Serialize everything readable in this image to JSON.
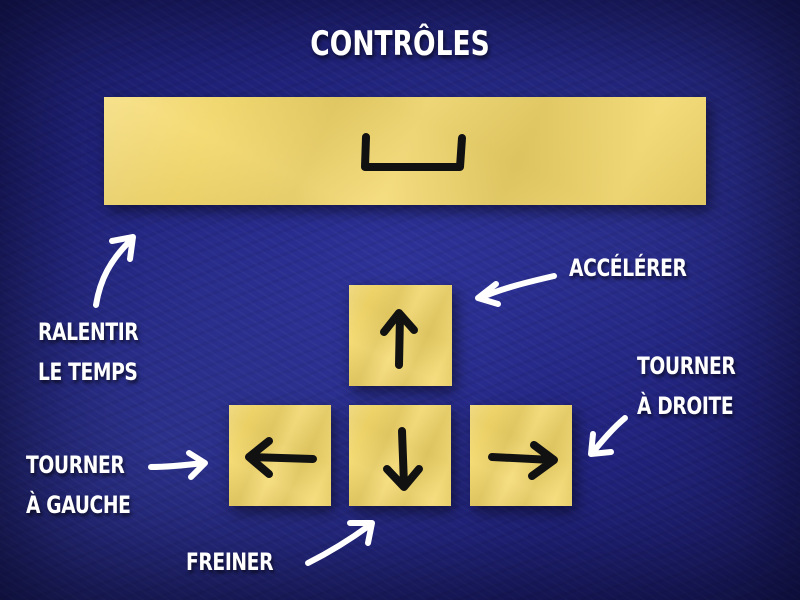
{
  "title": "CONTRÔLES",
  "keys": {
    "space": "space-bar-key",
    "up": "arrow-up-key",
    "down": "arrow-down-key",
    "left": "arrow-left-key",
    "right": "arrow-right-key"
  },
  "labels": {
    "slow_line1": "RALENTIR",
    "slow_line2": "LE TEMPS",
    "accelerate": "ACCÉLÉRER",
    "turn_right_line1": "TOURNER",
    "turn_right_line2": "À DROITE",
    "turn_left_line1": "TOURNER",
    "turn_left_line2": "À GAUCHE",
    "brake": "FREINER"
  },
  "colors": {
    "background": "#21237d",
    "paper": "#f4d869",
    "ink": "#111111",
    "text": "#ffffff"
  }
}
